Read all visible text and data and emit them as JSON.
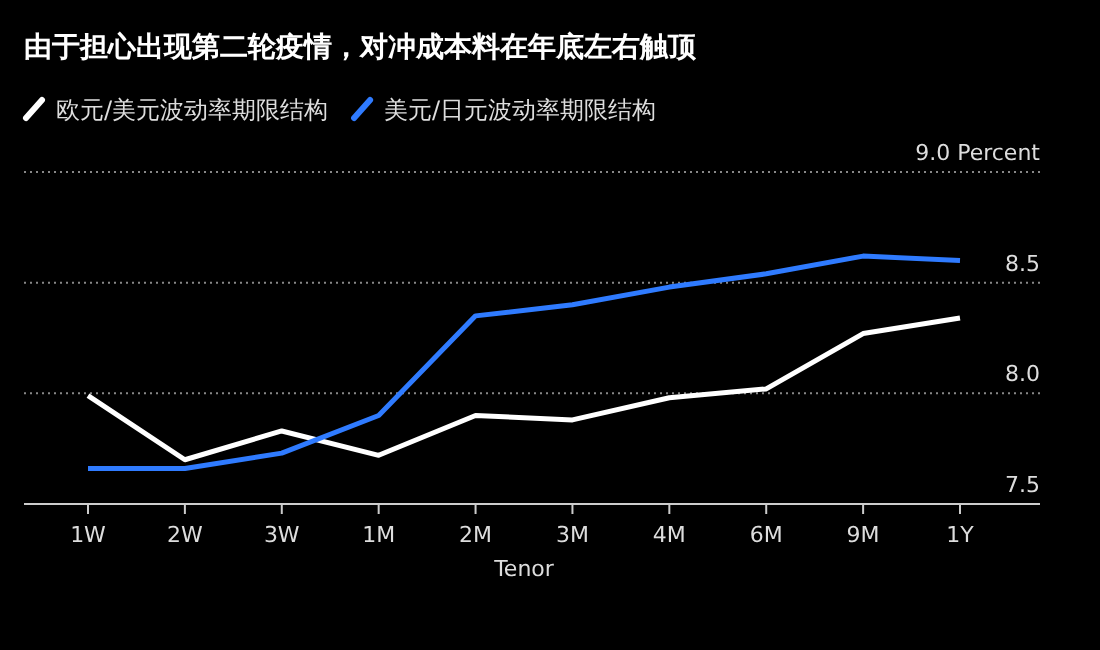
{
  "chart_data": {
    "type": "line",
    "title": "由于担心出现第二轮疫情，对冲成本料在年底左右触顶",
    "xlabel": "Tenor",
    "categories": [
      "1W",
      "2W",
      "3W",
      "1M",
      "2M",
      "3M",
      "4M",
      "6M",
      "9M",
      "1Y"
    ],
    "series": [
      {
        "name": "欧元/美元波动率期限结构",
        "color": "#ffffff",
        "values": [
          7.99,
          7.7,
          7.83,
          7.72,
          7.9,
          7.88,
          7.98,
          8.02,
          8.27,
          8.34
        ]
      },
      {
        "name": "美元/日元波动率期限结构",
        "color": "#2f7bff",
        "values": [
          7.66,
          7.66,
          7.73,
          7.9,
          8.35,
          8.4,
          8.48,
          8.54,
          8.62,
          8.6
        ]
      }
    ],
    "ylim": [
      7.5,
      9.0
    ],
    "yticks": [
      {
        "value": 7.5,
        "label": "7.5"
      },
      {
        "value": 8,
        "label": "8.0"
      },
      {
        "value": 8.5,
        "label": "8.5"
      },
      {
        "value": 9,
        "label": "9.0 Percent"
      }
    ],
    "grid": "y",
    "legend": "top left",
    "marker": "none",
    "line_style": "solid"
  }
}
